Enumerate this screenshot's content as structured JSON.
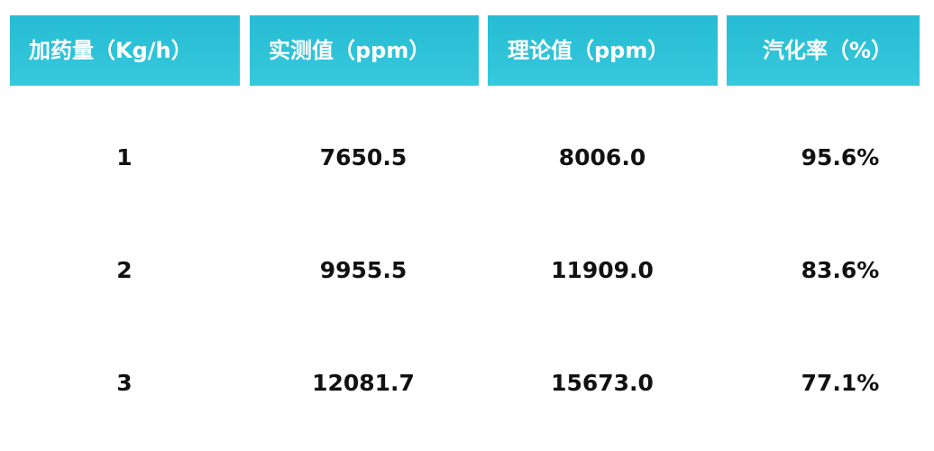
{
  "chart_data": {
    "type": "table",
    "columns": [
      "加药量（Kg/h）",
      "实测值（ppm）",
      "理论值（ppm）",
      "汽化率（%）"
    ],
    "rows": [
      [
        "1",
        "7650.5",
        "8006.0",
        "95.6%"
      ],
      [
        "2",
        "9955.5",
        "11909.0",
        "83.6%"
      ],
      [
        "3",
        "12081.7",
        "15673.0",
        "77.1%"
      ]
    ],
    "header_color": "#2ec2d8"
  }
}
